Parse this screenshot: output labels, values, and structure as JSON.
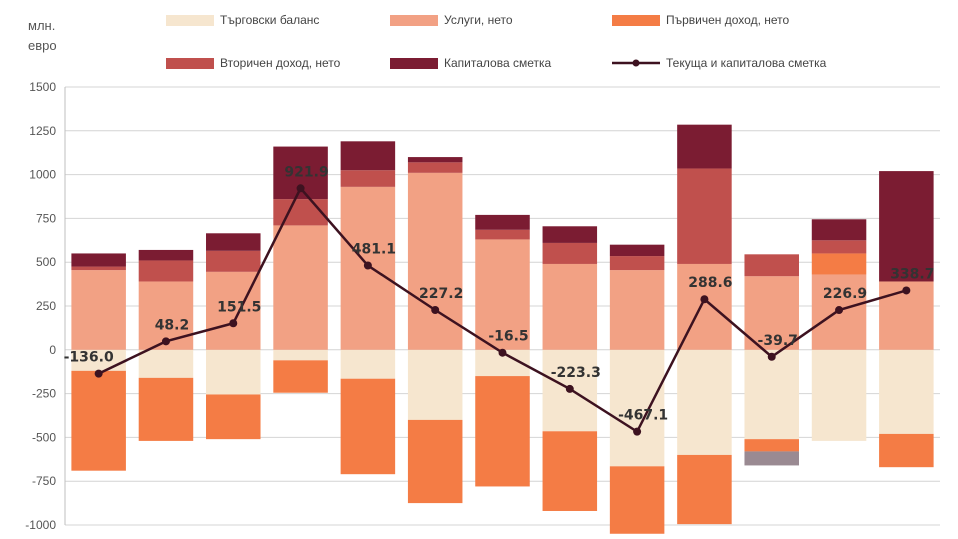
{
  "chart_data": {
    "type": "bar",
    "unit_label": [
      "млн.",
      "евро"
    ],
    "categories": [
      "",
      "",
      "",
      "",
      "",
      "",
      "",
      "",
      "",
      "",
      "",
      "",
      ""
    ],
    "ylim": [
      -1000,
      1500
    ],
    "yticks": [
      1500,
      1250,
      1000,
      750,
      500,
      250,
      0,
      -250,
      -500,
      -750,
      -1000
    ],
    "grid": true,
    "legend_position": "top",
    "series": [
      {
        "name": "Търговски баланс",
        "type": "bar",
        "color": "#f6e6cf",
        "values": [
          -120,
          -160,
          -255,
          -60,
          -165,
          -400,
          -150,
          -465,
          -665,
          -600,
          -510,
          -520,
          -480
        ]
      },
      {
        "name": "Услуги, нето",
        "type": "bar",
        "color": "#f2a184",
        "values": [
          455,
          390,
          445,
          710,
          930,
          1010,
          630,
          490,
          455,
          490,
          420,
          430,
          390
        ]
      },
      {
        "name": "Първичен доход, нето",
        "type": "bar",
        "color": "#f47c45",
        "values": [
          -570,
          -360,
          -255,
          -185,
          -545,
          -475,
          -630,
          -455,
          -385,
          -395,
          -70,
          120,
          -190
        ]
      },
      {
        "name": "Вторичен доход, нето",
        "type": "bar",
        "color": "#c0504d",
        "values": [
          20,
          120,
          120,
          150,
          95,
          60,
          55,
          120,
          80,
          545,
          125,
          75,
          0
        ]
      },
      {
        "name": "Капиталова сметка",
        "type": "bar",
        "color": "#7b1c32",
        "values": [
          75,
          60,
          100,
          300,
          165,
          30,
          85,
          95,
          65,
          250,
          0,
          120,
          630
        ]
      },
      {
        "name": "Текуща и капиталова сметка",
        "type": "line",
        "color": "#3d1220",
        "values": [
          -136.0,
          48.2,
          151.5,
          921.9,
          481.1,
          227.2,
          -16.5,
          -223.3,
          -467.1,
          288.6,
          -39.7,
          226.9,
          338.7
        ],
        "labels": [
          "-136.0",
          "48.2",
          "151.5",
          "921.9",
          "481.1",
          "227.2",
          "-16.5",
          "-223.3",
          "-467.1",
          "288.6",
          "-39.7",
          "226.9",
          "338.7"
        ]
      }
    ],
    "extra_negative": [
      0,
      0,
      0,
      0,
      0,
      0,
      0,
      0,
      0,
      0,
      -80,
      0,
      0
    ]
  }
}
